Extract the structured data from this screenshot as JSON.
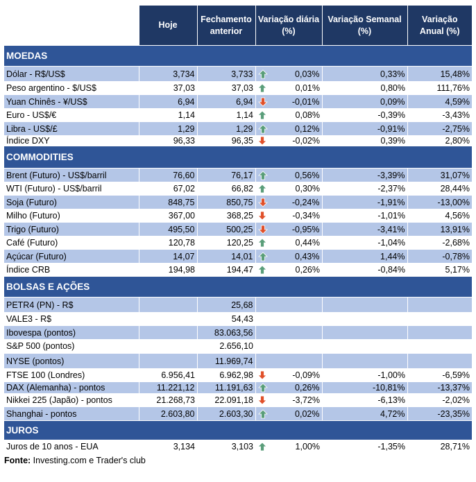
{
  "headers": [
    "Hoje",
    "Fechamento anterior",
    "Variação diária (%)",
    "Variação Semanal (%)",
    "Variação Anual (%)"
  ],
  "colors": {
    "header": "#1f3864",
    "section": "#2f5597",
    "shade": "#b4c6e7",
    "up": "#5a9e7a",
    "down": "#e0502a"
  },
  "sections": [
    {
      "title": "MOEDAS",
      "rows": [
        [
          "Dólar - R$/US$",
          "3,734",
          "3,733",
          "up",
          "0,03%",
          "0,33%",
          "15,48%"
        ],
        [
          "Peso argentino - $/US$",
          "37,03",
          "37,03",
          "up",
          "0,01%",
          "0,80%",
          "111,76%"
        ],
        [
          "Yuan Chinês - ¥/US$",
          "6,94",
          "6,94",
          "down",
          "-0,01%",
          "0,09%",
          "4,59%"
        ],
        [
          "Euro - US$/€",
          "1,14",
          "1,14",
          "up",
          "0,08%",
          "-0,39%",
          "-3,43%"
        ],
        [
          "Libra - US$/£",
          "1,29",
          "1,29",
          "up",
          "0,12%",
          "-0,91%",
          "-2,75%"
        ],
        [
          "Índice DXY",
          "96,33",
          "96,35",
          "down",
          "-0,02%",
          "0,39%",
          "2,80%"
        ]
      ]
    },
    {
      "title": "COMMODITIES",
      "rows": [
        [
          "Brent (Futuro) - US$/barril",
          "76,60",
          "76,17",
          "up",
          "0,56%",
          "-3,39%",
          "31,07%"
        ],
        [
          "WTI (Futuro) - US$/barril",
          "67,02",
          "66,82",
          "up",
          "0,30%",
          "-2,37%",
          "28,44%"
        ],
        [
          "Soja (Futuro)",
          "848,75",
          "850,75",
          "down",
          "-0,24%",
          "-1,91%",
          "-13,00%"
        ],
        [
          "Milho (Futuro)",
          "367,00",
          "368,25",
          "down",
          "-0,34%",
          "-1,01%",
          "4,56%"
        ],
        [
          "Trigo (Futuro)",
          "495,50",
          "500,25",
          "down",
          "-0,95%",
          "-3,41%",
          "13,91%"
        ],
        [
          "Café (Futuro)",
          "120,78",
          "120,25",
          "up",
          "0,44%",
          "-1,04%",
          "-2,68%"
        ],
        [
          "Açúcar (Futuro)",
          "14,07",
          "14,01",
          "up",
          "0,43%",
          "1,44%",
          "-0,78%"
        ],
        [
          "Índice CRB",
          "194,98",
          "194,47",
          "up",
          "0,26%",
          "-0,84%",
          "5,17%"
        ]
      ]
    },
    {
      "title": "BOLSAS E AÇÕES",
      "rows": [
        [
          "PETR4 (PN) - R$",
          "",
          "25,68",
          "",
          "",
          "",
          ""
        ],
        [
          "VALE3 - R$",
          "",
          "54,43",
          "",
          "",
          "",
          ""
        ],
        [
          "Ibovespa (pontos)",
          "",
          "83.063,56",
          "",
          "",
          "",
          ""
        ],
        [
          "S&P 500 (pontos)",
          "",
          "2.656,10",
          "",
          "",
          "",
          ""
        ],
        [
          "NYSE (pontos)",
          "",
          "11.969,74",
          "",
          "",
          "",
          ""
        ],
        [
          "FTSE 100 (Londres)",
          "6.956,41",
          "6.962,98",
          "down",
          "-0,09%",
          "-1,00%",
          "-6,59%"
        ],
        [
          "DAX (Alemanha) - pontos",
          "11.221,12",
          "11.191,63",
          "up",
          "0,26%",
          "-10,81%",
          "-13,37%"
        ],
        [
          "Nikkei 225 (Japão) - pontos",
          "21.268,73",
          "22.091,18",
          "down",
          "-3,72%",
          "-6,13%",
          "-2,02%"
        ],
        [
          "Shanghai - pontos",
          "2.603,80",
          "2.603,30",
          "up",
          "0,02%",
          "4,72%",
          "-23,35%"
        ]
      ]
    },
    {
      "title": "JUROS",
      "rows": [
        [
          "Juros de 10 anos - EUA",
          "3,134",
          "3,103",
          "up",
          "1,00%",
          "-1,35%",
          "28,71%"
        ]
      ]
    }
  ],
  "source": {
    "label": "Fonte:",
    "text": " Investing.com e Trader's club"
  }
}
